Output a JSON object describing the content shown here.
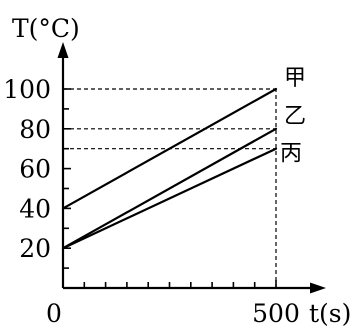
{
  "chart_data": {
    "type": "line",
    "xlabel": "t(s)",
    "ylabel": "T(°C)",
    "xlim": [
      0,
      500
    ],
    "ylim": [
      0,
      100
    ],
    "origin_label": "0",
    "x_ticks": [
      500
    ],
    "x_minor_tick_count": 9,
    "y_ticks": [
      20,
      40,
      60,
      80,
      100
    ],
    "y_minor_step": 10,
    "grid": false,
    "reference_lines": "dashed guides at series end values",
    "series": [
      {
        "name": "甲",
        "x": [
          0,
          500
        ],
        "y": [
          40,
          100
        ]
      },
      {
        "name": "乙",
        "x": [
          0,
          500
        ],
        "y": [
          20,
          80
        ]
      },
      {
        "name": "丙",
        "x": [
          0,
          500
        ],
        "y": [
          20,
          70
        ]
      }
    ]
  }
}
